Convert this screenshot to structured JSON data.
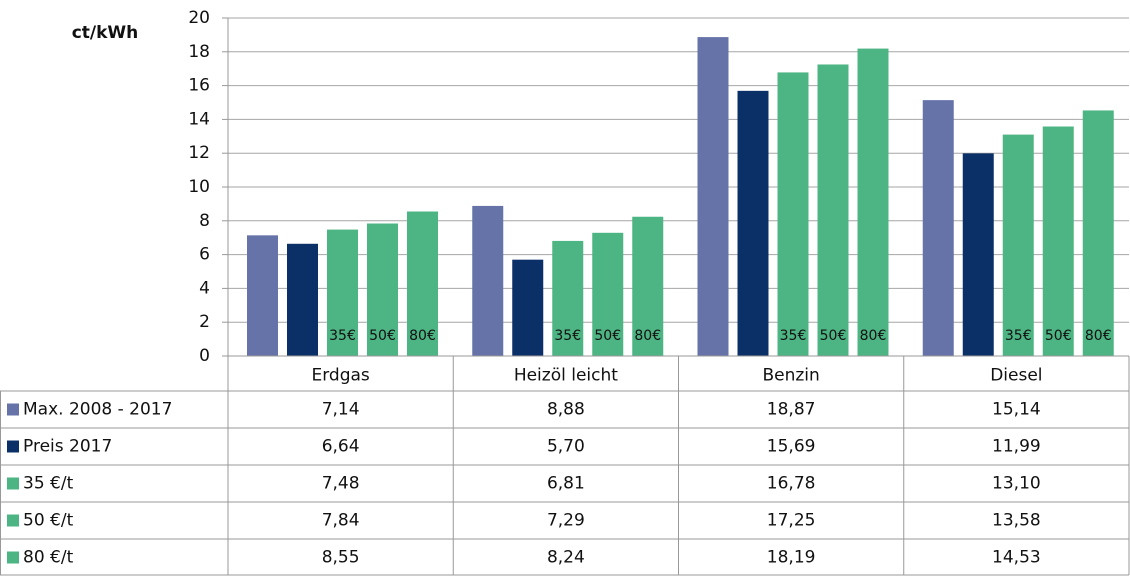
{
  "chart_data": {
    "type": "bar",
    "y_label": "ct/kWh",
    "categories": [
      "Erdgas",
      "Heizöl leicht",
      "Benzin",
      "Diesel"
    ],
    "series": [
      {
        "name": "Max. 2008 - 2017",
        "color": "#6673a8",
        "values": [
          7.14,
          8.88,
          18.87,
          15.14
        ],
        "value_labels": [
          "7,14",
          "8,88",
          "18,87",
          "15,14"
        ]
      },
      {
        "name": "Preis 2017",
        "color": "#0b3068",
        "values": [
          6.64,
          5.7,
          15.69,
          11.99
        ],
        "value_labels": [
          "6,64",
          "5,70",
          "15,69",
          "11,99"
        ]
      },
      {
        "name": "35 €/t",
        "color": "#4db584",
        "values": [
          7.48,
          6.81,
          16.78,
          13.1
        ],
        "value_labels": [
          "7,48",
          "6,81",
          "16,78",
          "13,10"
        ]
      },
      {
        "name": "50 €/t",
        "color": "#4db584",
        "values": [
          7.84,
          7.29,
          17.25,
          13.58
        ],
        "value_labels": [
          "7,84",
          "7,29",
          "17,25",
          "13,58"
        ]
      },
      {
        "name": "80 €/t",
        "color": "#4db584",
        "values": [
          8.55,
          8.24,
          18.19,
          14.53
        ],
        "value_labels": [
          "8,55",
          "8,24",
          "18,19",
          "14,53"
        ]
      }
    ],
    "bar_annotations": [
      "35€",
      "50€",
      "80€"
    ],
    "ylim": [
      0,
      20
    ],
    "yticks": [
      0,
      2,
      4,
      6,
      8,
      10,
      12,
      14,
      16,
      18,
      20
    ],
    "grid": true
  }
}
